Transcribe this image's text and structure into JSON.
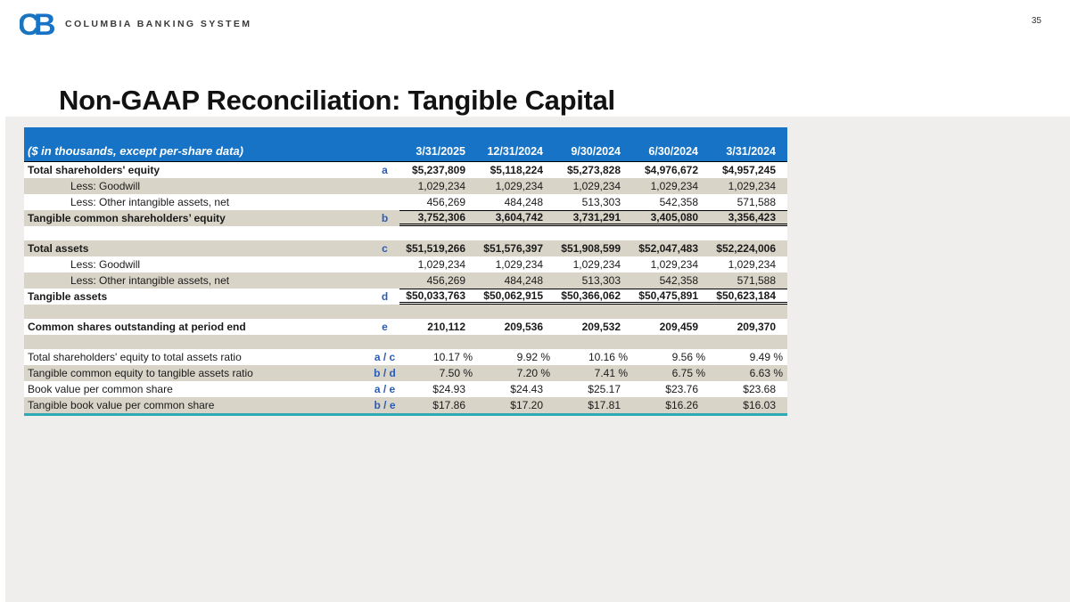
{
  "page_number": "35",
  "logo": {
    "mark": "CB",
    "brand": "COLUMBIA BANKING SYSTEM"
  },
  "title": "Non-GAAP Reconciliation: Tangible Capital",
  "colors": {
    "header_blue": "#1673c5",
    "row_shade_beige": "#d9d4c8",
    "marker_blue": "#2a5cba",
    "teal_rule": "#2fa9b4",
    "logo_blue": "#1b74be",
    "band_gray": "#efeeec"
  },
  "table": {
    "header_label": "($ in thousands, except per-share data)",
    "columns": [
      "3/31/2025",
      "12/31/2024",
      "9/30/2024",
      "6/30/2024",
      "3/31/2024"
    ],
    "rows": [
      {
        "label": "Total shareholders' equity",
        "marker": "a",
        "bold": true,
        "shade": false,
        "values": [
          "$5,237,809",
          "$5,118,224",
          "$5,273,828",
          "$4,976,672",
          "$4,957,245"
        ]
      },
      {
        "label": "Less: Goodwill",
        "marker": "",
        "indent": true,
        "shade": true,
        "values": [
          "1,029,234",
          "1,029,234",
          "1,029,234",
          "1,029,234",
          "1,029,234"
        ]
      },
      {
        "label": "Less: Other intangible assets, net",
        "marker": "",
        "indent": true,
        "shade": false,
        "values": [
          "456,269",
          "484,248",
          "513,303",
          "542,358",
          "571,588"
        ]
      },
      {
        "label": "Tangible common shareholders’ equity",
        "marker": "b",
        "bold": true,
        "shade": true,
        "rule": "total",
        "values": [
          "3,752,306",
          "3,604,742",
          "3,731,291",
          "3,405,080",
          "3,356,423"
        ]
      },
      {
        "blank": true,
        "shade": false
      },
      {
        "label": "Total assets",
        "marker": "c",
        "bold": true,
        "shade": true,
        "values": [
          "$51,519,266",
          "$51,576,397",
          "$51,908,599",
          "$52,047,483",
          "$52,224,006"
        ]
      },
      {
        "label": "Less: Goodwill",
        "marker": "",
        "indent": true,
        "shade": false,
        "values": [
          "1,029,234",
          "1,029,234",
          "1,029,234",
          "1,029,234",
          "1,029,234"
        ]
      },
      {
        "label": "Less: Other intangible assets, net",
        "marker": "",
        "indent": true,
        "shade": true,
        "values": [
          "456,269",
          "484,248",
          "513,303",
          "542,358",
          "571,588"
        ]
      },
      {
        "label": "Tangible assets",
        "marker": "d",
        "bold": true,
        "shade": false,
        "rule": "total",
        "values": [
          "$50,033,763",
          "$50,062,915",
          "$50,366,062",
          "$50,475,891",
          "$50,623,184"
        ]
      },
      {
        "blank": true,
        "shade": true
      },
      {
        "label": "Common shares outstanding at period end",
        "marker": "e",
        "bold": true,
        "shade": false,
        "values": [
          "210,112",
          "209,536",
          "209,532",
          "209,459",
          "209,370"
        ]
      },
      {
        "blank": true,
        "shade": true
      },
      {
        "label": "Total shareholders' equity to total assets ratio",
        "marker": "a / c",
        "shade": false,
        "values": [
          "10.17 %",
          "9.92 %",
          "10.16 %",
          "9.56 %",
          "9.49 %"
        ]
      },
      {
        "label": "Tangible common equity to tangible assets ratio",
        "marker": "b / d",
        "shade": true,
        "values": [
          "7.50 %",
          "7.20 %",
          "7.41 %",
          "6.75 %",
          "6.63 %"
        ]
      },
      {
        "label": "Book value per common share",
        "marker": "a / e",
        "shade": false,
        "values": [
          "$24.93",
          "$24.43",
          "$25.17",
          "$23.76",
          "$23.68"
        ]
      },
      {
        "label": "Tangible book value per common share",
        "marker": "b / e",
        "shade": true,
        "values": [
          "$17.86",
          "$17.20",
          "$17.81",
          "$16.26",
          "$16.03"
        ]
      }
    ]
  }
}
